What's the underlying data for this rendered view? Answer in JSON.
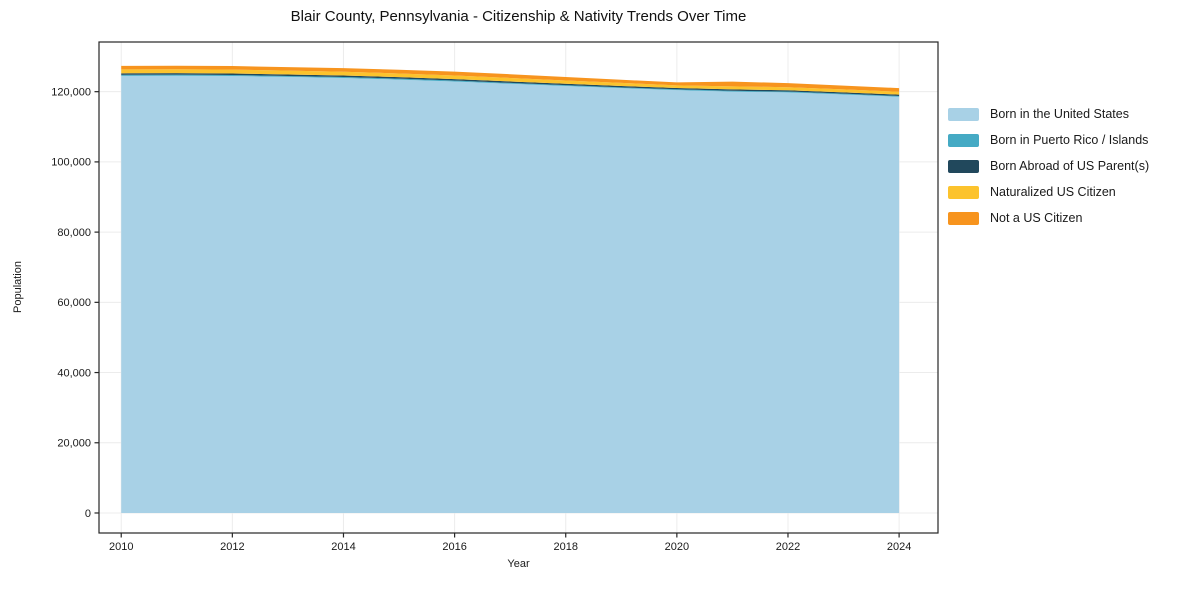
{
  "chart_data": {
    "type": "area",
    "stacked": true,
    "title": "Blair County, Pennsylvania - Citizenship & Nativity Trends Over Time",
    "xlabel": "Year",
    "ylabel": "Population",
    "x": [
      2010,
      2011,
      2012,
      2013,
      2014,
      2015,
      2016,
      2017,
      2018,
      2019,
      2020,
      2021,
      2022,
      2023,
      2024
    ],
    "series": [
      {
        "name": "Born in the United States",
        "color": "#A8D1E6",
        "values": [
          124500,
          124550,
          124450,
          124200,
          123900,
          123450,
          122900,
          122250,
          121600,
          121000,
          120450,
          120000,
          119800,
          119200,
          118550
        ]
      },
      {
        "name": "Born in Puerto Rico / Islands",
        "color": "#45AAC4",
        "values": [
          300,
          300,
          290,
          280,
          280,
          270,
          270,
          260,
          250,
          240,
          230,
          250,
          240,
          230,
          230
        ]
      },
      {
        "name": "Born Abroad of US Parent(s)",
        "color": "#21485C",
        "values": [
          430,
          430,
          430,
          420,
          420,
          410,
          410,
          400,
          390,
          380,
          370,
          390,
          380,
          370,
          370
        ]
      },
      {
        "name": "Naturalized US Citizen",
        "color": "#FCC32D",
        "values": [
          1120,
          1120,
          1110,
          1100,
          1080,
          1060,
          1040,
          1000,
          950,
          880,
          760,
          870,
          860,
          840,
          830
        ]
      },
      {
        "name": "Not a US Citizen",
        "color": "#F7941E",
        "values": [
          1000,
          1000,
          1020,
          1000,
          1020,
          1060,
          1080,
          1060,
          1000,
          900,
          840,
          1350,
          1160,
          1100,
          1030
        ]
      }
    ],
    "x_ticks": [
      2010,
      2012,
      2014,
      2016,
      2018,
      2020,
      2022,
      2024
    ],
    "x_tick_labels": [
      "2010",
      "2012",
      "2014",
      "2016",
      "2018",
      "2020",
      "2022",
      "2024"
    ],
    "y_ticks": [
      0,
      20000,
      40000,
      60000,
      80000,
      100000,
      120000
    ],
    "y_tick_labels": [
      "0",
      "20,000",
      "40,000",
      "60,000",
      "80,000",
      "100,000",
      "120,000"
    ],
    "xlim": [
      2009.6,
      2024.7
    ],
    "ylim": [
      -5700,
      134150
    ],
    "grid": true,
    "grid_color": "#ececec",
    "spine_color": "#262626",
    "tick_color": "#262626",
    "text_color": "#1a1a1a",
    "background": "#ffffff",
    "legend_position": "right outside"
  }
}
